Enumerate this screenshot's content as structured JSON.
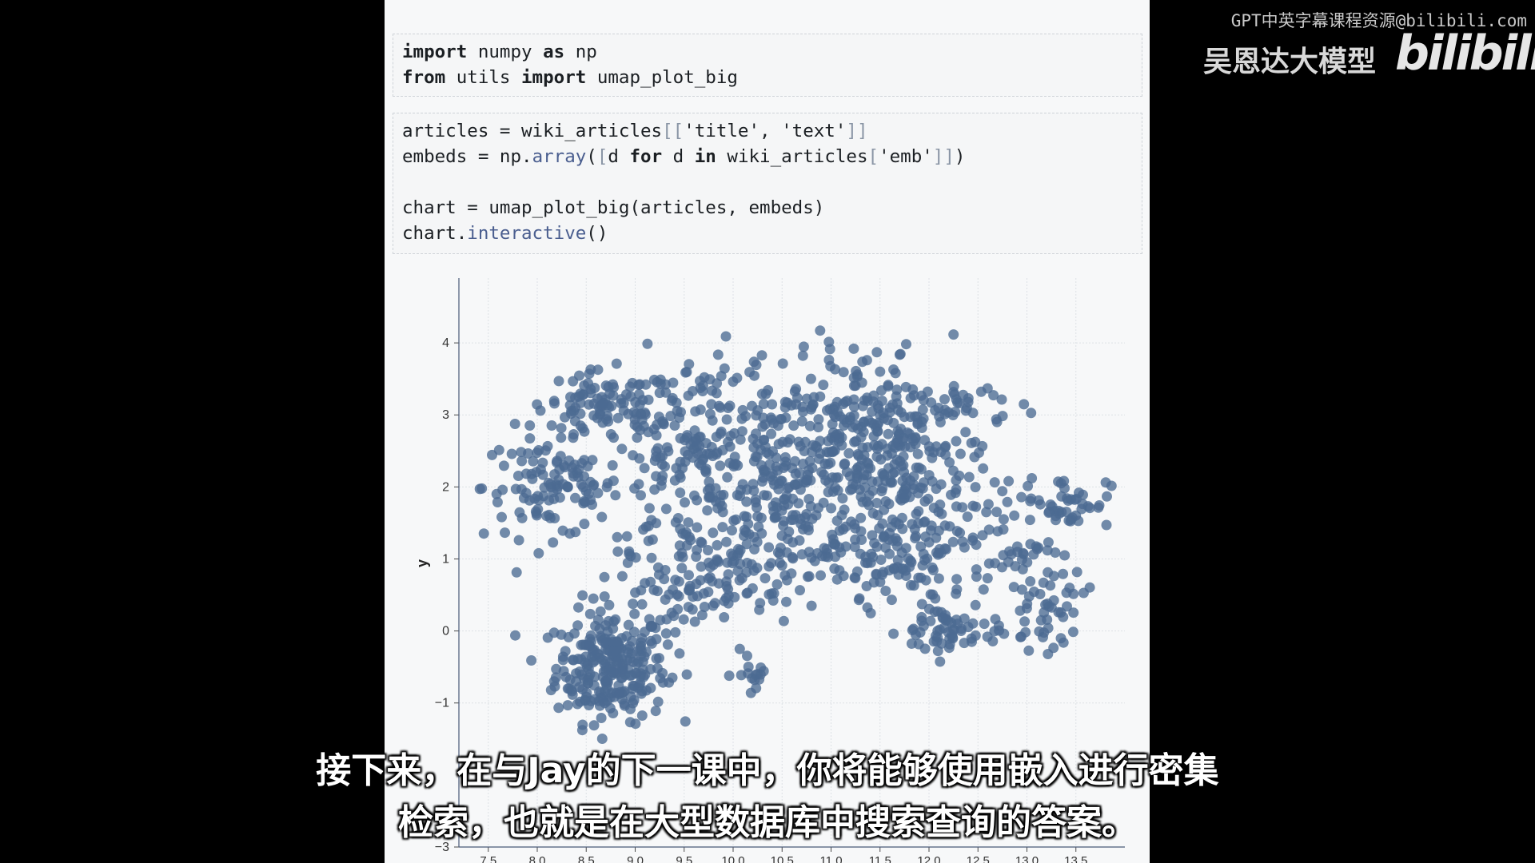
{
  "overlay": {
    "watermark": "GPT中英字幕课程资源@bilibili.com",
    "brand": "吴恩达大模型",
    "logo": "bilibili"
  },
  "cells": [
    {
      "lines": [
        [
          {
            "t": "import",
            "c": "kw"
          },
          {
            "t": " numpy ",
            "c": ""
          },
          {
            "t": "as",
            "c": "kw"
          },
          {
            "t": " np",
            "c": ""
          }
        ],
        [
          {
            "t": "from",
            "c": "kw"
          },
          {
            "t": " utils ",
            "c": ""
          },
          {
            "t": "import",
            "c": "kw"
          },
          {
            "t": " umap_plot_big",
            "c": ""
          }
        ]
      ]
    },
    {
      "lines": [
        [
          {
            "t": "articles = wiki_articles",
            "c": ""
          },
          {
            "t": "[[",
            "c": "br"
          },
          {
            "t": "'title', 'text'",
            "c": "str"
          },
          {
            "t": "]]",
            "c": "br"
          }
        ],
        [
          {
            "t": "embeds = np.",
            "c": ""
          },
          {
            "t": "array",
            "c": "fn"
          },
          {
            "t": "(",
            "c": ""
          },
          {
            "t": "[",
            "c": "br"
          },
          {
            "t": "d ",
            "c": ""
          },
          {
            "t": "for",
            "c": "kw"
          },
          {
            "t": " d ",
            "c": ""
          },
          {
            "t": "in",
            "c": "kw"
          },
          {
            "t": " wiki_articles",
            "c": ""
          },
          {
            "t": "[",
            "c": "br"
          },
          {
            "t": "'emb'",
            "c": "str"
          },
          {
            "t": "]]",
            "c": "br"
          },
          {
            "t": ")",
            "c": ""
          }
        ],
        [],
        [
          {
            "t": "chart = umap_plot_big(articles, embeds)",
            "c": ""
          }
        ],
        [
          {
            "t": "chart.",
            "c": ""
          },
          {
            "t": "interactive",
            "c": "fn"
          },
          {
            "t": "()",
            "c": ""
          }
        ]
      ]
    }
  ],
  "chart_data": {
    "type": "scatter",
    "ylabel": "y",
    "xlim": [
      7.2,
      14.0
    ],
    "ylim": [
      -3,
      4.9
    ],
    "xticks": [
      "7.5",
      "8.0",
      "8.5",
      "9.0",
      "9.5",
      "10.0",
      "10.5",
      "11.0",
      "11.5",
      "12.0",
      "12.5",
      "13.0",
      "13.5"
    ],
    "yticks": [
      "4",
      "3",
      "2",
      "1",
      "0",
      "−1",
      "−3"
    ],
    "color": "#4c6a92",
    "clusters": [
      {
        "cx": 8.75,
        "cy": -0.5,
        "sx": 0.28,
        "sy": 0.38,
        "n": 260
      },
      {
        "cx": 8.15,
        "cy": 2.0,
        "sx": 0.35,
        "sy": 0.35,
        "n": 110
      },
      {
        "cx": 8.7,
        "cy": 3.1,
        "sx": 0.35,
        "sy": 0.25,
        "n": 90
      },
      {
        "cx": 9.6,
        "cy": 2.3,
        "sx": 0.55,
        "sy": 0.75,
        "n": 230
      },
      {
        "cx": 10.6,
        "cy": 2.3,
        "sx": 0.45,
        "sy": 0.8,
        "n": 220
      },
      {
        "cx": 11.2,
        "cy": 2.6,
        "sx": 0.3,
        "sy": 0.6,
        "n": 120
      },
      {
        "cx": 11.85,
        "cy": 2.3,
        "sx": 0.35,
        "sy": 0.7,
        "n": 200
      },
      {
        "cx": 11.7,
        "cy": 1.0,
        "sx": 0.35,
        "sy": 0.4,
        "n": 80
      },
      {
        "cx": 12.2,
        "cy": 0.0,
        "sx": 0.25,
        "sy": 0.2,
        "n": 60
      },
      {
        "cx": 13.2,
        "cy": 0.35,
        "sx": 0.2,
        "sy": 0.3,
        "n": 50
      },
      {
        "cx": 13.4,
        "cy": 1.8,
        "sx": 0.22,
        "sy": 0.18,
        "n": 45
      },
      {
        "cx": 9.4,
        "cy": 0.5,
        "sx": 0.4,
        "sy": 0.35,
        "n": 70
      },
      {
        "cx": 10.2,
        "cy": 0.9,
        "sx": 0.4,
        "sy": 0.4,
        "n": 70
      },
      {
        "cx": 10.25,
        "cy": -0.6,
        "sx": 0.12,
        "sy": 0.12,
        "n": 15
      },
      {
        "cx": 12.6,
        "cy": 1.2,
        "sx": 0.35,
        "sy": 0.35,
        "n": 55
      },
      {
        "cx": 12.6,
        "cy": 3.1,
        "sx": 0.25,
        "sy": 0.2,
        "n": 20
      }
    ]
  },
  "subtitles": [
    "接下来，在与Jay的下一课中，你将能够使用嵌入进行密集",
    "检索，也就是在大型数据库中搜索查询的答案。"
  ]
}
